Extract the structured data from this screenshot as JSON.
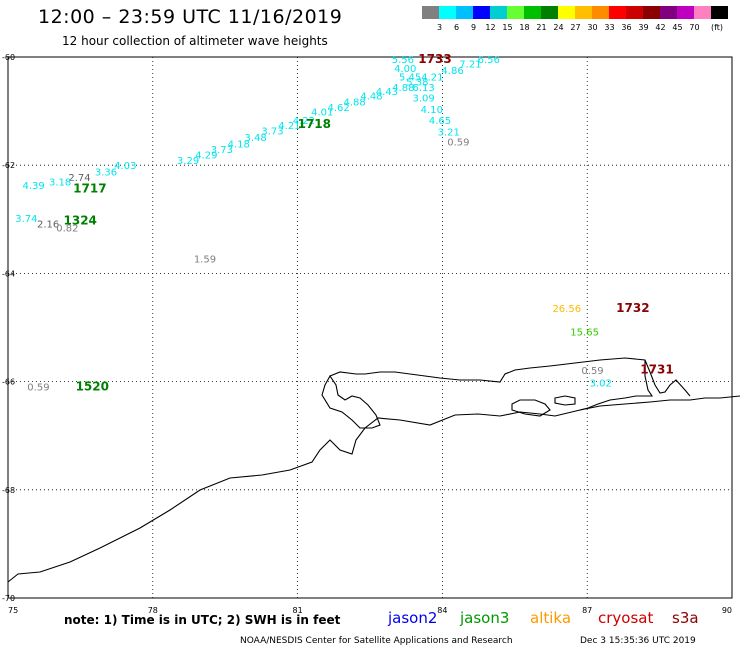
{
  "header": {
    "title": "12:00 – 23:59 UTC 11/16/2019",
    "subtitle": "12 hour collection of altimeter wave heights"
  },
  "legend": {
    "unit": "(ft)",
    "colors": [
      "#808080",
      "#00ffff",
      "#00bfff",
      "#0000ff",
      "#00ced1",
      "#66ff33",
      "#00bf00",
      "#008000",
      "#ffff00",
      "#ffbf00",
      "#ff8c00",
      "#ff0000",
      "#cc0000",
      "#8b0000",
      "#800080",
      "#c000c0",
      "#ff80c0",
      "#000000"
    ],
    "labels": [
      "3",
      "6",
      "9",
      "12",
      "15",
      "18",
      "21",
      "24",
      "27",
      "30",
      "33",
      "36",
      "39",
      "42",
      "45",
      "70"
    ]
  },
  "axes": {
    "x_ticks": [
      "75",
      "78",
      "81",
      "84",
      "87",
      "90"
    ],
    "y_ticks": [
      "-60",
      "-62",
      "-64",
      "-66",
      "-68",
      "-70"
    ]
  },
  "observations": [
    {
      "t": "5.56",
      "c": "#00e5ee",
      "lon": 82.95,
      "lat": -60.04
    },
    {
      "t": "6.56",
      "c": "#00e5ee",
      "lon": 84.73,
      "lat": -60.04
    },
    {
      "t": "7.21",
      "c": "#00e5ee",
      "lon": 84.35,
      "lat": -60.12
    },
    {
      "t": "4.00",
      "c": "#00e5ee",
      "lon": 83.0,
      "lat": -60.2
    },
    {
      "t": "4.86",
      "c": "#00e5ee",
      "lon": 83.98,
      "lat": -60.24
    },
    {
      "t": "5.454.21",
      "c": "#00e5ee",
      "lon": 83.1,
      "lat": -60.36
    },
    {
      "t": "5.38",
      "c": "#00e5ee",
      "lon": 83.25,
      "lat": -60.45
    },
    {
      "t": "4.88",
      "c": "#00e5ee",
      "lon": 82.96,
      "lat": -60.55
    },
    {
      "t": "6.13",
      "c": "#00e5ee",
      "lon": 83.38,
      "lat": -60.55
    },
    {
      "t": "4.43",
      "c": "#00e5ee",
      "lon": 82.62,
      "lat": -60.63
    },
    {
      "t": "4.48",
      "c": "#00e5ee",
      "lon": 82.3,
      "lat": -60.71
    },
    {
      "t": "3.09",
      "c": "#00e5ee",
      "lon": 83.38,
      "lat": -60.75
    },
    {
      "t": "4.88",
      "c": "#00e5ee",
      "lon": 81.95,
      "lat": -60.82
    },
    {
      "t": "4.62",
      "c": "#00e5ee",
      "lon": 81.62,
      "lat": -60.92
    },
    {
      "t": "4.10",
      "c": "#00e5ee",
      "lon": 83.55,
      "lat": -60.96
    },
    {
      "t": "4.01",
      "c": "#00e5ee",
      "lon": 81.28,
      "lat": -61.01
    },
    {
      "t": "4.22",
      "c": "#00e5ee",
      "lon": 80.9,
      "lat": -61.16
    },
    {
      "t": "4.65",
      "c": "#00e5ee",
      "lon": 83.72,
      "lat": -61.16
    },
    {
      "t": "4.21",
      "c": "#00e5ee",
      "lon": 80.6,
      "lat": -61.26
    },
    {
      "t": "3.21",
      "c": "#00e5ee",
      "lon": 83.9,
      "lat": -61.38
    },
    {
      "t": "3.73",
      "c": "#00e5ee",
      "lon": 80.25,
      "lat": -61.36
    },
    {
      "t": "3.48",
      "c": "#00e5ee",
      "lon": 79.9,
      "lat": -61.48
    },
    {
      "t": "0.59",
      "c": "#808080",
      "lon": 84.1,
      "lat": -61.56
    },
    {
      "t": "4.18",
      "c": "#00e5ee",
      "lon": 79.55,
      "lat": -61.6
    },
    {
      "t": "3.73",
      "c": "#00e5ee",
      "lon": 79.2,
      "lat": -61.7
    },
    {
      "t": "4.29",
      "c": "#00e5ee",
      "lon": 78.88,
      "lat": -61.8
    },
    {
      "t": "3.29",
      "c": "#00e5ee",
      "lon": 78.5,
      "lat": -61.9
    },
    {
      "t": "4.03",
      "c": "#00e5ee",
      "lon": 77.2,
      "lat": -62.0
    },
    {
      "t": "3.36",
      "c": "#00e5ee",
      "lon": 76.8,
      "lat": -62.12
    },
    {
      "t": "2.74",
      "c": "#606060",
      "lon": 76.25,
      "lat": -62.22
    },
    {
      "t": "3.18",
      "c": "#00e5ee",
      "lon": 75.85,
      "lat": -62.3
    },
    {
      "t": "4.39",
      "c": "#00e5ee",
      "lon": 75.3,
      "lat": -62.37
    },
    {
      "t": "3.74",
      "c": "#00e5ee",
      "lon": 75.15,
      "lat": -62.98
    },
    {
      "t": "2.16",
      "c": "#606060",
      "lon": 75.6,
      "lat": -63.08
    },
    {
      "t": "0.82",
      "c": "#808080",
      "lon": 76.0,
      "lat": -63.15
    },
    {
      "t": "1.59",
      "c": "#808080",
      "lon": 78.85,
      "lat": -63.72
    },
    {
      "t": "26.56",
      "c": "#ffbb00",
      "lon": 86.28,
      "lat": -64.64
    },
    {
      "t": "15.65",
      "c": "#33cc00",
      "lon": 86.65,
      "lat": -65.07
    },
    {
      "t": "0.59",
      "c": "#808080",
      "lon": 86.88,
      "lat": -65.79
    },
    {
      "t": "3.02",
      "c": "#00e5ee",
      "lon": 87.05,
      "lat": -66.02
    },
    {
      "t": "0.59",
      "c": "#808080",
      "lon": 75.4,
      "lat": -66.09
    }
  ],
  "pass_labels": [
    {
      "t": "1733",
      "c": "#8b0000",
      "lon": 83.5,
      "lat": -60.04
    },
    {
      "t": "1718",
      "c": "#008000",
      "lon": 81.0,
      "lat": -61.24
    },
    {
      "t": "1717",
      "c": "#008000",
      "lon": 76.35,
      "lat": -62.43
    },
    {
      "t": "1324",
      "c": "#008000",
      "lon": 76.15,
      "lat": -63.02
    },
    {
      "t": "1732",
      "c": "#8b0000",
      "lon": 87.6,
      "lat": -64.64
    },
    {
      "t": "1731",
      "c": "#8b0000",
      "lon": 88.1,
      "lat": -65.78
    },
    {
      "t": "1520",
      "c": "#008000",
      "lon": 76.4,
      "lat": -66.09
    }
  ],
  "footer": {
    "note": "note:  1) Time is in UTC;  2) SWH is in feet",
    "satellites": [
      {
        "name": "jason2",
        "color": "#0000ee"
      },
      {
        "name": "jason3",
        "color": "#009900"
      },
      {
        "name": "altika",
        "color": "#ff9900"
      },
      {
        "name": "cryosat",
        "color": "#cc0000"
      },
      {
        "name": "s3a",
        "color": "#8b0000"
      }
    ],
    "credit": "NOAA/NESDIS Center for Satellite Applications and Research",
    "timestamp": "Dec  3 15:35:36 UTC 2019"
  }
}
